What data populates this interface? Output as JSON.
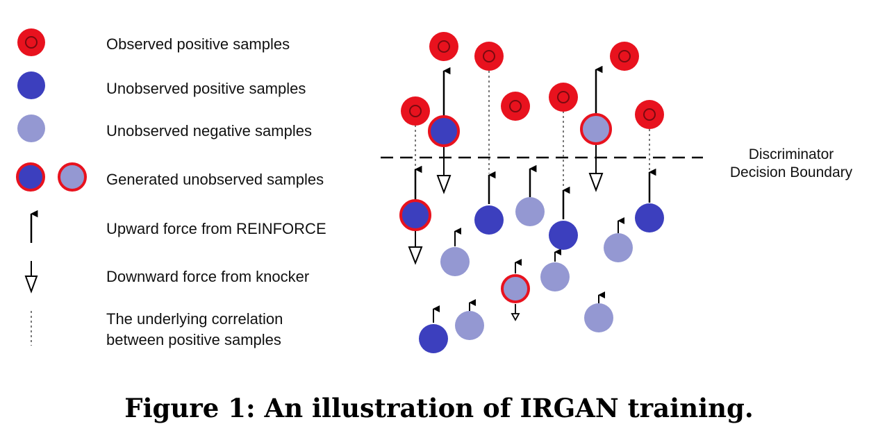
{
  "legend": {
    "observed_positive": "Observed positive samples",
    "unobserved_positive": "Unobserved positive samples",
    "unobserved_negative": "Unobserved negative samples",
    "generated": "Generated unobserved samples",
    "upward_force": "Upward force from REINFORCE",
    "downward_force": "Downward force from knocker",
    "correlation_line1": "The underlying correlation",
    "correlation_line2": "between positive samples"
  },
  "boundary": {
    "line1": "Discriminator",
    "line2": "Decision Boundary"
  },
  "caption": "Figure 1: An illustration of IRGAN training.",
  "colors": {
    "observed_fill": "#e8121e",
    "observed_ring": "#7a0a10",
    "unobserved_positive": "#3c3fbe",
    "unobserved_negative": "#9498d2",
    "generated_ring": "#e8121e",
    "arrow": "#000000",
    "correlation": "#777777"
  }
}
